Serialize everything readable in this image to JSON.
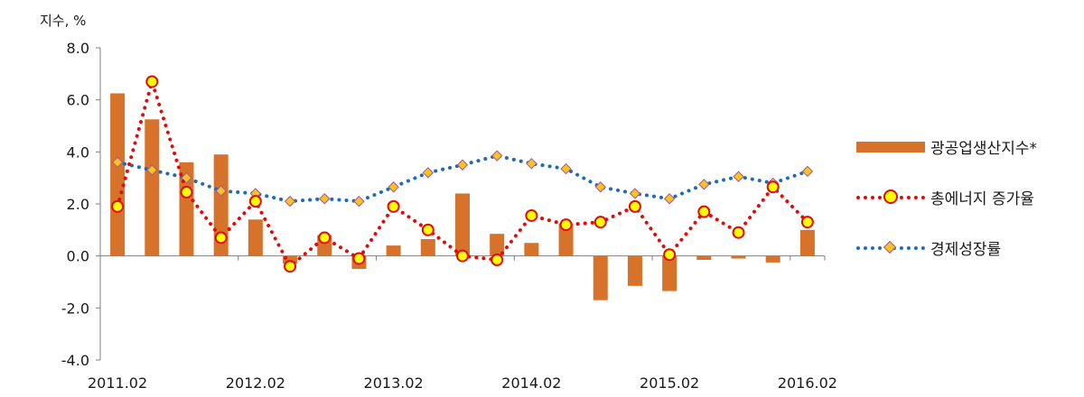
{
  "chart_data": {
    "type": "bar+line",
    "ylabel": "지수, %",
    "ylim": [
      -4,
      8
    ],
    "yticks": [
      "8.0",
      "6.0",
      "4.0",
      "2.0",
      "0.0",
      "-2.0",
      "-4.0"
    ],
    "ytick_values": [
      8,
      6,
      4,
      2,
      0,
      -2,
      -4
    ],
    "xticks": [
      "2011.02",
      "2012.02",
      "2013.02",
      "2014.02",
      "2015.02",
      "2016.02"
    ],
    "xtick_index": [
      0,
      4,
      8,
      12,
      16,
      20
    ],
    "grid": false,
    "legend_position": "right",
    "periods": 21,
    "series": [
      {
        "name": "광공업생산지수*",
        "kind": "bar",
        "color": "#d7722b",
        "values": [
          6.25,
          5.25,
          3.6,
          3.9,
          1.4,
          -0.3,
          0.8,
          -0.5,
          0.4,
          0.65,
          2.4,
          0.85,
          0.5,
          1.25,
          -1.7,
          -1.15,
          -1.35,
          -0.15,
          -0.1,
          -0.25,
          1.0
        ]
      },
      {
        "name": "총에너지 증가율",
        "kind": "line",
        "style": "dotted",
        "color": "#e20b0b",
        "marker": "circle",
        "marker_fill": "#ffff00",
        "values": [
          1.9,
          6.7,
          2.45,
          0.7,
          2.1,
          -0.4,
          0.7,
          -0.1,
          1.9,
          1.0,
          0.0,
          -0.15,
          1.55,
          1.2,
          1.3,
          1.9,
          0.05,
          1.7,
          0.9,
          2.65,
          1.3
        ]
      },
      {
        "name": "경제성장률",
        "kind": "line",
        "style": "dotted",
        "color": "#1f6cb5",
        "marker": "diamond",
        "marker_fill": "#f5c51f",
        "values": [
          3.6,
          3.3,
          3.0,
          2.5,
          2.4,
          2.1,
          2.2,
          2.1,
          2.65,
          3.2,
          3.5,
          3.85,
          3.55,
          3.35,
          2.65,
          2.4,
          2.2,
          2.75,
          3.05,
          2.8,
          3.25
        ]
      }
    ]
  }
}
